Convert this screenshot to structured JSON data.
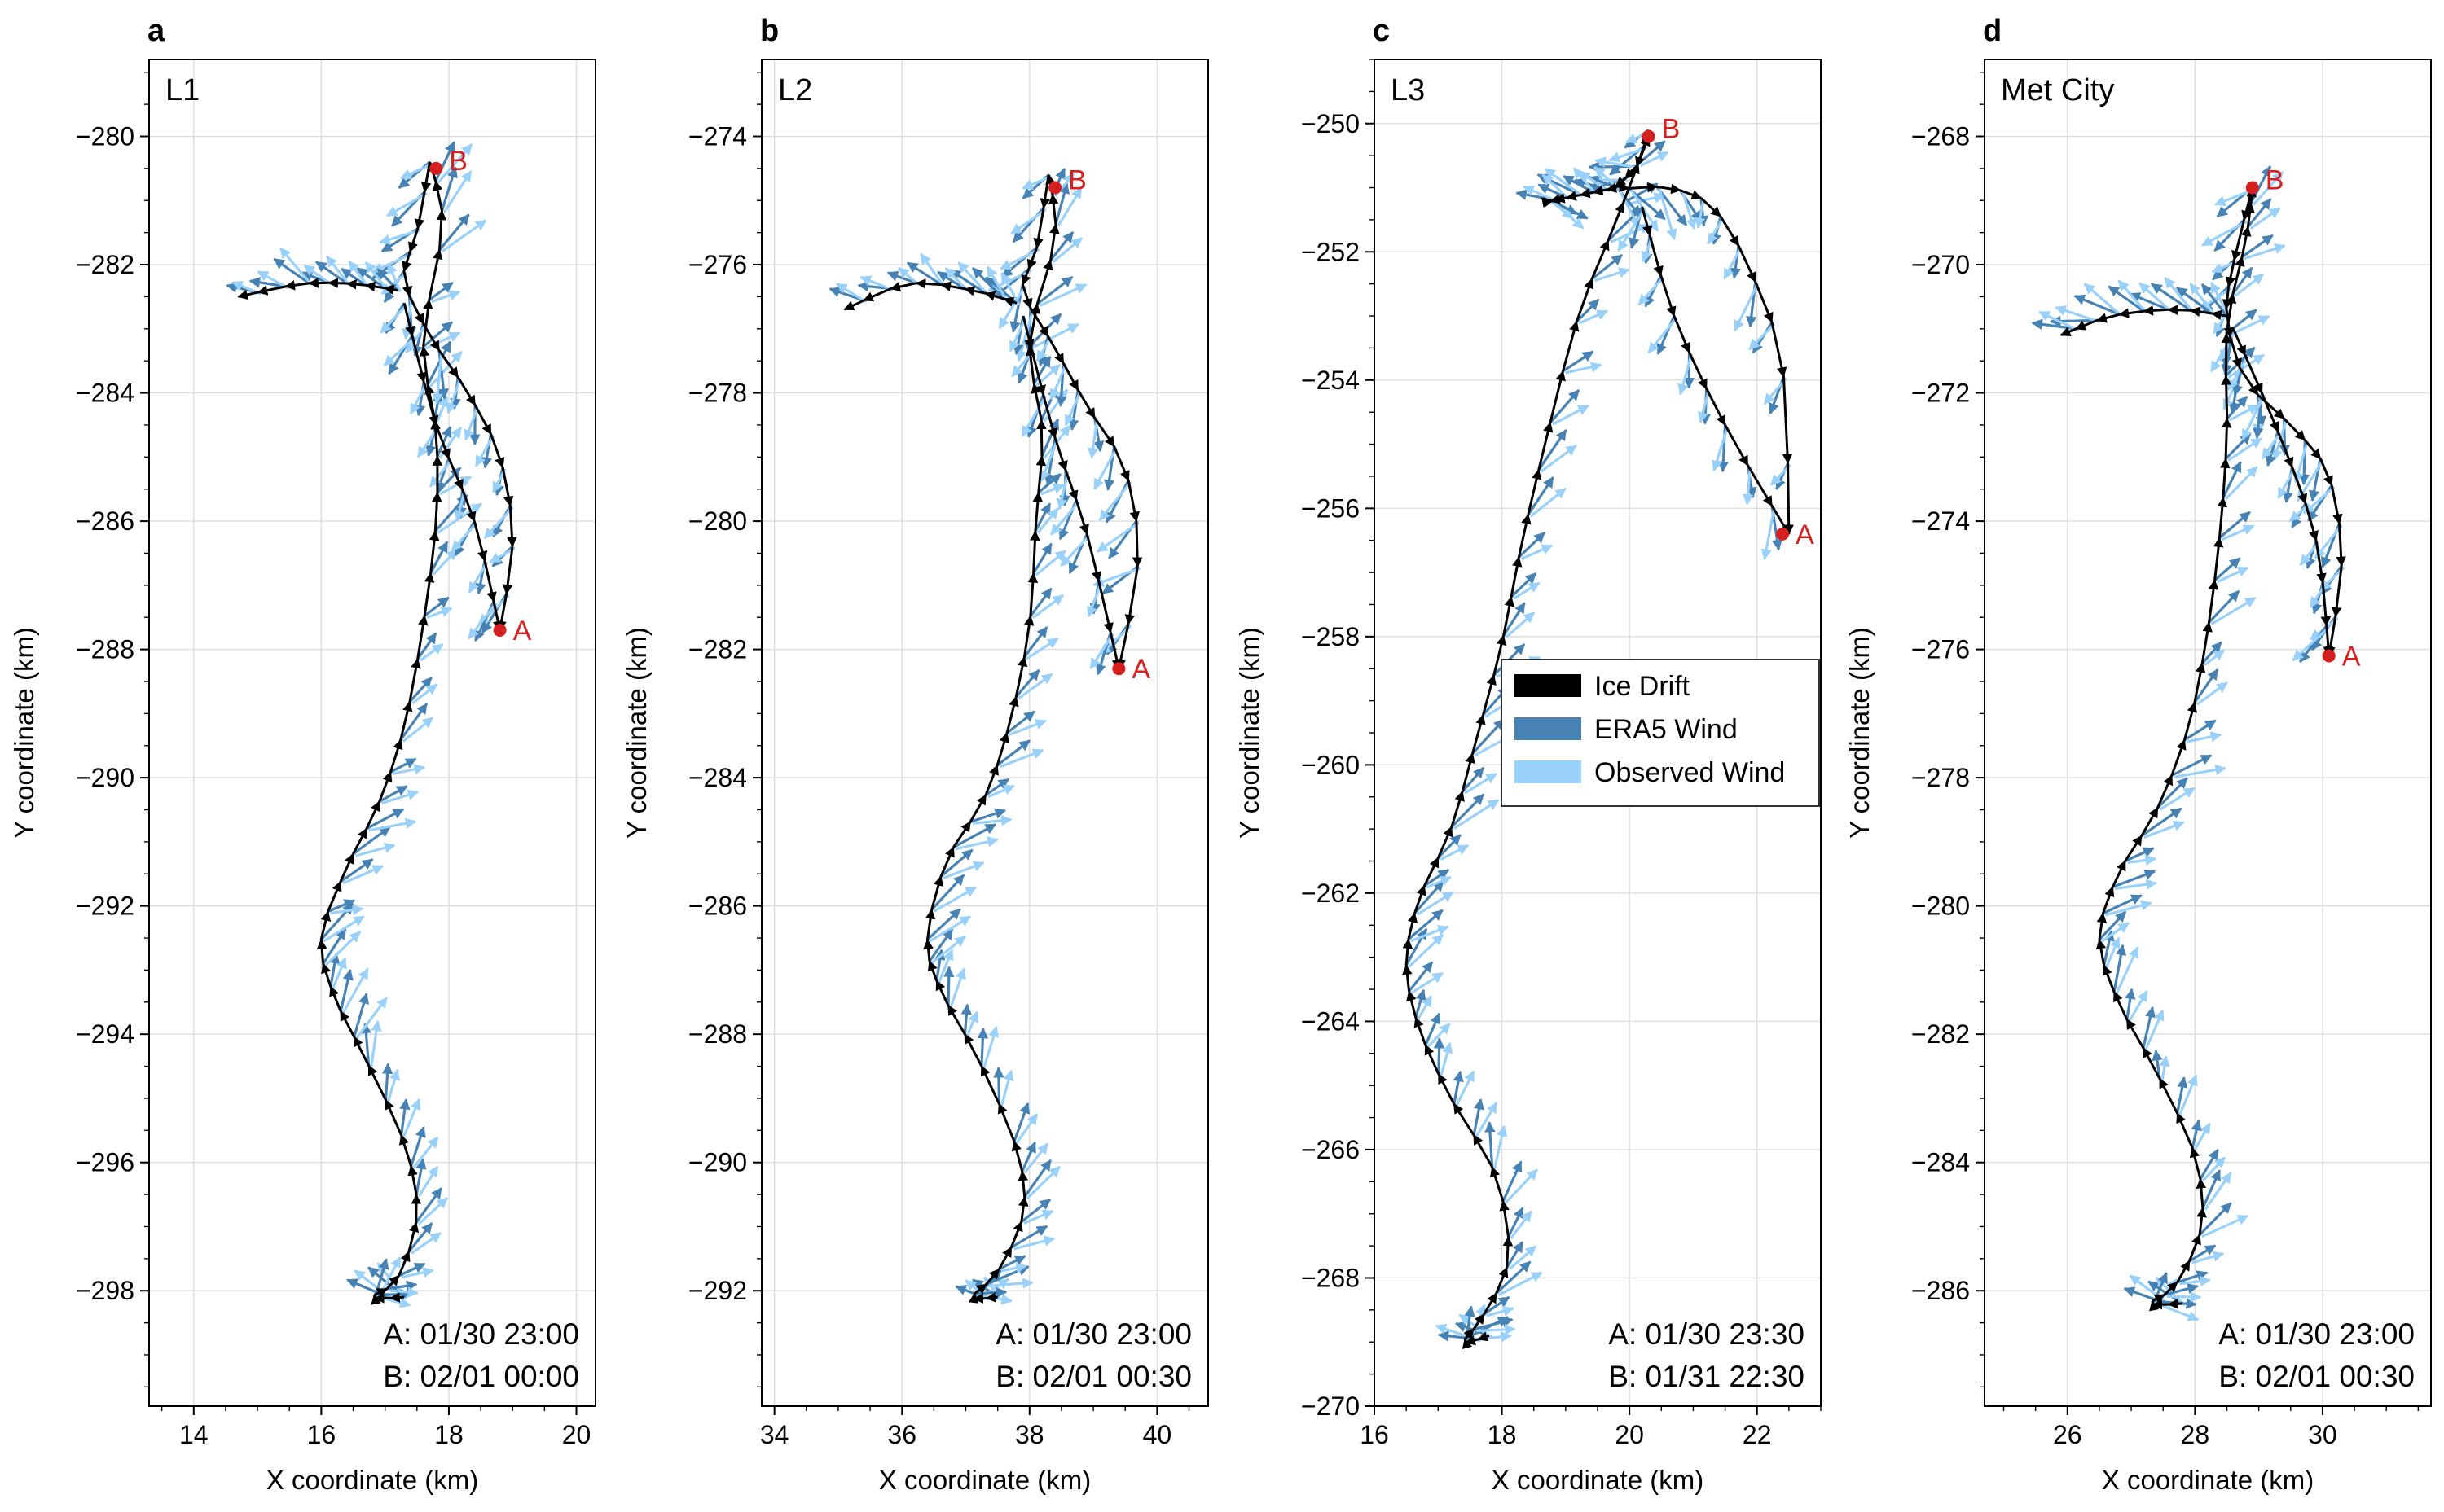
{
  "figure": {
    "legend": [
      {
        "label": "Ice Drift",
        "color": "#000000"
      },
      {
        "label": "ERA5 Wind",
        "color": "#4682b4"
      },
      {
        "label": "Observed Wind",
        "color": "#99d1fa"
      }
    ],
    "colors": {
      "ice": "#000000",
      "era5": "#4682b4",
      "observed": "#99d1fa",
      "marker": "#d62020",
      "grid": "#dddddd"
    }
  },
  "chart_data": [
    {
      "type": "scatter",
      "panel_letter": "a",
      "station": "L1",
      "xlabel": "X coordinate (km)",
      "ylabel": "Y coordinate (km)",
      "xlim": [
        13.3,
        20.3
      ],
      "ylim": [
        -299.8,
        -278.8
      ],
      "xticks": [
        14,
        16,
        18,
        20
      ],
      "yticks": [
        -280,
        -282,
        -284,
        -286,
        -288,
        -290,
        -292,
        -294,
        -296,
        -298
      ],
      "grid": true,
      "track_y_range": [
        -298.2,
        -280.4
      ],
      "track_knots": [
        [
          17.3,
          -298.1
        ],
        [
          16.8,
          -298.1
        ],
        [
          17.2,
          -297.8
        ],
        [
          17.5,
          -296.8
        ],
        [
          17.3,
          -295.7
        ],
        [
          16.7,
          -294.4
        ],
        [
          16.2,
          -293.4
        ],
        [
          16.0,
          -292.5
        ],
        [
          16.4,
          -291.4
        ],
        [
          16.9,
          -290.4
        ],
        [
          17.3,
          -289.2
        ],
        [
          17.6,
          -287.6
        ],
        [
          17.8,
          -286.0
        ],
        [
          17.8,
          -284.6
        ],
        [
          17.6,
          -283.2
        ],
        [
          17.9,
          -281.4
        ],
        [
          17.7,
          -280.4
        ]
      ],
      "loop": [
        [
          17.7,
          -280.4
        ],
        [
          17.5,
          -281.5
        ],
        [
          17.3,
          -282.2
        ],
        [
          17.7,
          -283.1
        ],
        [
          18.3,
          -284.0
        ],
        [
          18.8,
          -285.0
        ],
        [
          19.0,
          -286.3
        ],
        [
          18.8,
          -287.7
        ]
      ],
      "loop_inner": [
        [
          17.3,
          -282.6
        ],
        [
          17.8,
          -284.5
        ],
        [
          18.4,
          -286.0
        ],
        [
          18.8,
          -287.7
        ]
      ],
      "branch": [
        [
          17.2,
          -282.4
        ],
        [
          16.5,
          -282.3
        ],
        [
          15.7,
          -282.3
        ],
        [
          14.7,
          -282.5
        ]
      ],
      "point_A": {
        "label": "A",
        "x": 18.8,
        "y": -287.7
      },
      "point_B": {
        "label": "B",
        "x": 17.8,
        "y": -280.5
      },
      "timestamps": [
        "A: 01/30 23:00",
        "B: 02/01 00:00"
      ]
    },
    {
      "type": "scatter",
      "panel_letter": "b",
      "station": "L2",
      "xlabel": "X coordinate (km)",
      "ylabel": "Y coordinate (km)",
      "xlim": [
        33.8,
        40.8
      ],
      "ylim": [
        -293.8,
        -272.8
      ],
      "xticks": [
        34,
        36,
        38,
        40
      ],
      "yticks": [
        -274,
        -276,
        -278,
        -280,
        -282,
        -284,
        -286,
        -288,
        -290,
        -292
      ],
      "grid": true,
      "track_y_range": [
        -292.2,
        -274.6
      ],
      "track_knots": [
        [
          37.5,
          -292.1
        ],
        [
          37.1,
          -292.1
        ],
        [
          37.5,
          -291.7
        ],
        [
          37.9,
          -290.8
        ],
        [
          37.8,
          -289.8
        ],
        [
          37.2,
          -288.4
        ],
        [
          36.6,
          -287.3
        ],
        [
          36.4,
          -286.5
        ],
        [
          36.7,
          -285.3
        ],
        [
          37.3,
          -284.3
        ],
        [
          37.7,
          -283.1
        ],
        [
          38.0,
          -281.6
        ],
        [
          38.1,
          -280.0
        ],
        [
          38.2,
          -278.6
        ],
        [
          38.0,
          -277.2
        ],
        [
          38.4,
          -275.6
        ],
        [
          38.3,
          -274.6
        ]
      ],
      "loop": [
        [
          38.3,
          -274.6
        ],
        [
          38.1,
          -275.8
        ],
        [
          37.9,
          -276.4
        ],
        [
          38.4,
          -277.3
        ],
        [
          38.9,
          -278.2
        ],
        [
          39.5,
          -279.2
        ],
        [
          39.7,
          -280.6
        ],
        [
          39.4,
          -282.3
        ]
      ],
      "loop_inner": [
        [
          37.9,
          -276.8
        ],
        [
          38.4,
          -278.7
        ],
        [
          38.9,
          -280.2
        ],
        [
          39.4,
          -282.3
        ]
      ],
      "branch": [
        [
          37.8,
          -276.6
        ],
        [
          37.1,
          -276.4
        ],
        [
          36.1,
          -276.3
        ],
        [
          35.1,
          -276.7
        ]
      ],
      "point_A": {
        "label": "A",
        "x": 39.4,
        "y": -282.3
      },
      "point_B": {
        "label": "B",
        "x": 38.4,
        "y": -274.8
      },
      "timestamps": [
        "A: 01/30 23:00",
        "B: 02/01 00:30"
      ]
    },
    {
      "type": "scatter",
      "panel_letter": "c",
      "station": "L3",
      "xlabel": "X coordinate (km)",
      "ylabel": "Y coordinate (km)",
      "xlim": [
        16.0,
        23.0
      ],
      "ylim": [
        -270.0,
        -249.0
      ],
      "xticks": [
        16,
        18,
        20,
        22
      ],
      "yticks": [
        -250,
        -252,
        -254,
        -256,
        -258,
        -260,
        -262,
        -264,
        -266,
        -268,
        -270
      ],
      "grid": true,
      "track_y_range": [
        -269.1,
        -250.1
      ],
      "track_knots": [
        [
          17.8,
          -268.9
        ],
        [
          17.4,
          -269.0
        ],
        [
          17.7,
          -268.6
        ],
        [
          18.1,
          -267.7
        ],
        [
          17.9,
          -266.4
        ],
        [
          17.2,
          -265.2
        ],
        [
          16.7,
          -264.1
        ],
        [
          16.5,
          -263.1
        ],
        [
          16.7,
          -262.1
        ],
        [
          17.2,
          -261.0
        ],
        [
          17.6,
          -259.6
        ],
        [
          18.0,
          -258.1
        ],
        [
          18.3,
          -256.6
        ],
        [
          18.7,
          -254.9
        ],
        [
          19.2,
          -253.0
        ],
        [
          19.8,
          -251.5
        ],
        [
          20.3,
          -250.2
        ]
      ],
      "loop": [
        [
          20.3,
          -250.1
        ],
        [
          20.1,
          -250.7
        ],
        [
          19.8,
          -251.0
        ],
        [
          20.6,
          -251.0
        ],
        [
          21.3,
          -251.3
        ],
        [
          21.9,
          -252.3
        ],
        [
          22.4,
          -253.8
        ],
        [
          22.5,
          -256.4
        ]
      ],
      "loop_inner": [
        [
          20.2,
          -251.3
        ],
        [
          20.7,
          -253.0
        ],
        [
          21.5,
          -254.7
        ],
        [
          22.5,
          -256.4
        ]
      ],
      "branch": [
        [
          19.8,
          -251.0
        ],
        [
          19.3,
          -251.1
        ],
        [
          18.8,
          -251.2
        ],
        [
          18.8,
          -251.2
        ]
      ],
      "point_A": {
        "label": "A",
        "x": 22.4,
        "y": -256.4
      },
      "point_B": {
        "label": "B",
        "x": 20.3,
        "y": -250.2
      },
      "timestamps": [
        "A: 01/30 23:30",
        "B: 01/31 22:30"
      ],
      "legend_location": "center-right"
    },
    {
      "type": "scatter",
      "panel_letter": "d",
      "station": "Met City",
      "xlabel": "X coordinate (km)",
      "ylabel": "Y coordinate (km)",
      "xlim": [
        24.7,
        31.7
      ],
      "ylim": [
        -287.8,
        -266.8
      ],
      "xticks": [
        26,
        28,
        30
      ],
      "yticks": [
        -268,
        -270,
        -272,
        -274,
        -276,
        -278,
        -280,
        -282,
        -284,
        -286
      ],
      "grid": true,
      "track_y_range": [
        -286.3,
        -268.8
      ],
      "track_knots": [
        [
          27.8,
          -286.2
        ],
        [
          27.3,
          -286.2
        ],
        [
          27.7,
          -285.9
        ],
        [
          28.1,
          -285.0
        ],
        [
          28.0,
          -283.9
        ],
        [
          27.4,
          -282.6
        ],
        [
          26.8,
          -281.5
        ],
        [
          26.5,
          -280.5
        ],
        [
          26.8,
          -279.5
        ],
        [
          27.4,
          -278.5
        ],
        [
          27.9,
          -277.2
        ],
        [
          28.2,
          -275.7
        ],
        [
          28.4,
          -274.1
        ],
        [
          28.5,
          -272.6
        ],
        [
          28.5,
          -271.0
        ],
        [
          28.8,
          -269.6
        ],
        [
          28.9,
          -268.8
        ]
      ],
      "loop": [
        [
          28.9,
          -268.8
        ],
        [
          28.6,
          -270.0
        ],
        [
          28.5,
          -270.8
        ],
        [
          28.8,
          -271.8
        ],
        [
          29.6,
          -272.6
        ],
        [
          30.1,
          -273.3
        ],
        [
          30.3,
          -274.6
        ],
        [
          30.1,
          -276.1
        ]
      ],
      "loop_inner": [
        [
          28.6,
          -271.0
        ],
        [
          29.3,
          -272.6
        ],
        [
          29.9,
          -274.3
        ],
        [
          30.1,
          -276.1
        ]
      ],
      "branch": [
        [
          28.5,
          -270.8
        ],
        [
          27.7,
          -270.7
        ],
        [
          26.7,
          -270.8
        ],
        [
          25.9,
          -271.1
        ]
      ],
      "point_A": {
        "label": "A",
        "x": 30.1,
        "y": -276.1
      },
      "point_B": {
        "label": "B",
        "x": 28.9,
        "y": -268.8
      },
      "timestamps": [
        "A: 01/30 23:00",
        "B: 02/01 00:30"
      ]
    }
  ]
}
